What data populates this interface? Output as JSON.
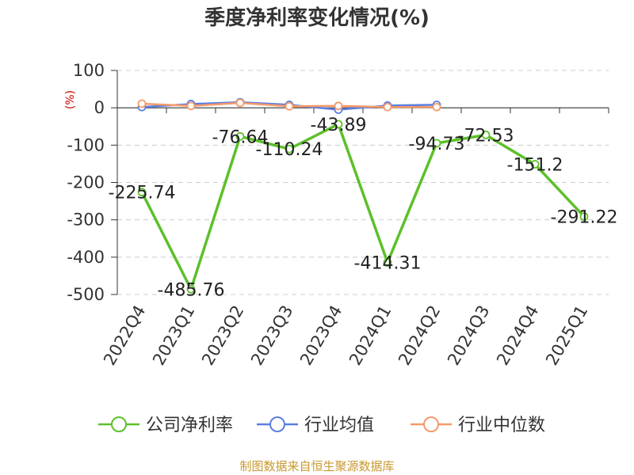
{
  "chart_data": {
    "type": "line",
    "title": "季度净利率变化情况(%)",
    "y_unit": "(%)",
    "categories": [
      "2022Q4",
      "2023Q1",
      "2023Q2",
      "2023Q3",
      "2023Q4",
      "2024Q1",
      "2024Q2",
      "2024Q3",
      "2024Q4",
      "2025Q1"
    ],
    "ylim": [
      -500,
      100
    ],
    "yticks": [
      100,
      0,
      -100,
      -200,
      -300,
      -400,
      -500
    ],
    "grid": true,
    "legend_position": "bottom",
    "series": [
      {
        "name": "公司净利率",
        "color": "#5dc02a",
        "values": [
          -225.74,
          -485.76,
          -76.64,
          -110.24,
          -43.89,
          -414.31,
          -94.73,
          -72.53,
          -151.2,
          -291.22
        ],
        "labels": [
          "-225.74",
          "-485.76",
          "-76.64",
          "-110.24",
          "-43.89",
          "-414.31",
          "-94.73",
          "-72.53",
          "-151.2",
          "-291.22"
        ]
      },
      {
        "name": "行业均值",
        "color": "#5b7fe0",
        "values": [
          2,
          10,
          15,
          8,
          -5,
          6,
          8,
          null,
          null,
          null
        ]
      },
      {
        "name": "行业中位数",
        "color": "#f59a6a",
        "values": [
          11,
          5,
          13,
          4,
          5,
          2,
          2,
          null,
          null,
          null
        ]
      }
    ]
  },
  "colors": {
    "unit": "#d40000",
    "source": "#c8982f"
  },
  "source": "制图数据来自恒生聚源数据库"
}
